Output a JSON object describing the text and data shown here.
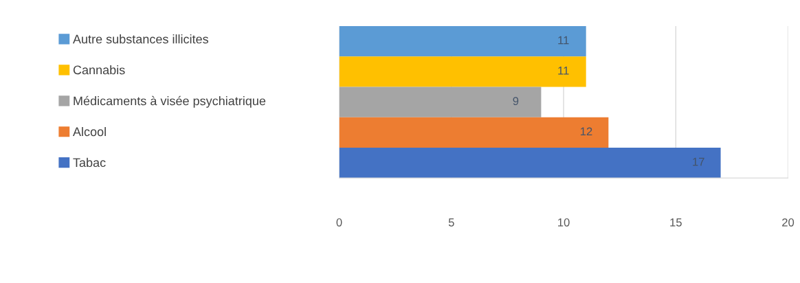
{
  "chart_data": {
    "type": "bar",
    "orientation": "horizontal",
    "categories": [
      null
    ],
    "series": [
      {
        "name": "Autre substances illicites",
        "color": "#5b9bd5",
        "values": [
          11
        ]
      },
      {
        "name": "Cannabis",
        "color": "#ffc000",
        "values": [
          11
        ]
      },
      {
        "name": "Médicaments à visée psychiatrique",
        "color": "#a5a5a5",
        "values": [
          9
        ]
      },
      {
        "name": "Alcool",
        "color": "#ed7d31",
        "values": [
          12
        ]
      },
      {
        "name": "Tabac",
        "color": "#4472c4",
        "values": [
          17
        ]
      }
    ],
    "xlim": [
      0,
      20
    ],
    "xticks": [
      0,
      5,
      10,
      15,
      20
    ],
    "grid": "x",
    "legend": "left",
    "data_labels": true
  }
}
